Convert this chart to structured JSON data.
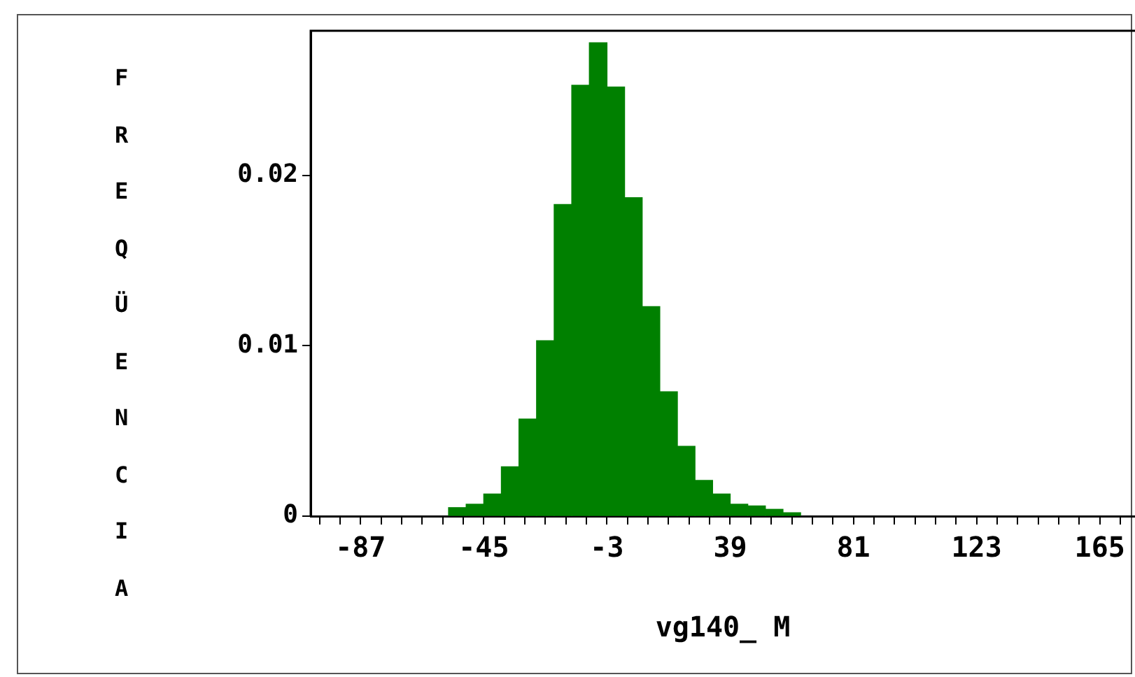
{
  "chart_data": {
    "type": "histogram",
    "xlabel": "vg140_ M",
    "ylabel": "FREQÜENCIA",
    "color": "#008000",
    "bins": [
      -57,
      -51,
      -45,
      -39,
      -33,
      -27,
      -21,
      -15,
      -9,
      -3,
      3,
      9,
      15,
      21,
      27,
      33,
      39,
      45,
      51,
      57,
      63
    ],
    "values": [
      0.0005,
      0.0007,
      0.0013,
      0.0029,
      0.0057,
      0.0103,
      0.0183,
      0.0253,
      0.0278,
      0.0252,
      0.0187,
      0.0123,
      0.0073,
      0.0041,
      0.0021,
      0.0013,
      0.0007,
      0.0006,
      0.0004,
      0.0002
    ],
    "xlim": [
      -104,
      177
    ],
    "ylim": [
      0,
      0.0285
    ],
    "grid": false,
    "xticks": [
      {
        "value": -101,
        "label": null
      },
      {
        "value": -94,
        "label": null
      },
      -87,
      {
        "value": -80,
        "label": null
      },
      {
        "value": -73,
        "label": null
      },
      {
        "value": -66,
        "label": null
      },
      {
        "value": -59,
        "label": null
      },
      {
        "value": -52,
        "label": null
      },
      -45,
      {
        "value": -38,
        "label": null
      },
      {
        "value": -31,
        "label": null
      },
      {
        "value": -24,
        "label": null
      },
      {
        "value": -17,
        "label": null
      },
      {
        "value": -10,
        "label": null
      },
      -3,
      {
        "value": 4,
        "label": null
      },
      {
        "value": 11,
        "label": null
      },
      {
        "value": 18,
        "label": null
      },
      {
        "value": 25,
        "label": null
      },
      {
        "value": 32,
        "label": null
      },
      39,
      {
        "value": 46,
        "label": null
      },
      {
        "value": 53,
        "label": null
      },
      {
        "value": 60,
        "label": null
      },
      {
        "value": 67,
        "label": null
      },
      {
        "value": 74,
        "label": null
      },
      81,
      {
        "value": 88,
        "label": null
      },
      {
        "value": 95,
        "label": null
      },
      {
        "value": 102,
        "label": null
      },
      {
        "value": 109,
        "label": null
      },
      {
        "value": 116,
        "label": null
      },
      123,
      {
        "value": 130,
        "label": null
      },
      {
        "value": 137,
        "label": null
      },
      {
        "value": 144,
        "label": null
      },
      {
        "value": 151,
        "label": null
      },
      {
        "value": 158,
        "label": null
      },
      165,
      {
        "value": 172,
        "label": null
      }
    ],
    "yticks": [
      0,
      0.01,
      0.02
    ]
  }
}
